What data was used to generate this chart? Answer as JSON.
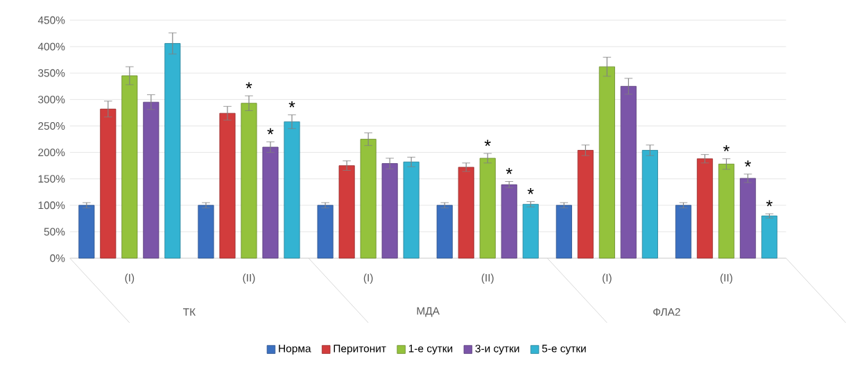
{
  "chart_data": {
    "type": "bar",
    "categories": [
      "(I)",
      "(II)",
      "(I)",
      "(II)",
      "(I)",
      "(II)"
    ],
    "annotations": [
      "ТК",
      "МДА",
      "ФЛА2"
    ],
    "series": [
      {
        "name": "Норма",
        "color": "#3b70c0",
        "values": [
          100,
          100,
          100,
          100,
          100,
          100
        ],
        "errors": [
          5,
          5,
          5,
          5,
          5,
          5
        ]
      },
      {
        "name": "Перитонит",
        "color": "#d23c3c",
        "values": [
          282,
          274,
          175,
          172,
          204,
          188
        ],
        "errors": [
          15,
          13,
          9,
          8,
          10,
          8
        ]
      },
      {
        "name": "1-е сутки",
        "color": "#94c23c",
        "values": [
          345,
          293,
          225,
          189,
          362,
          178
        ],
        "errors": [
          17,
          14,
          12,
          9,
          18,
          10
        ],
        "value_labels": [
          null,
          "*",
          null,
          "*",
          null,
          "*"
        ]
      },
      {
        "name": "3-и сутки",
        "color": "#7b55a8",
        "values": [
          295,
          210,
          179,
          139,
          325,
          151
        ],
        "errors": [
          14,
          10,
          10,
          6,
          15,
          8
        ],
        "value_labels": [
          null,
          "*",
          null,
          "*",
          null,
          "*"
        ]
      },
      {
        "name": "5-е сутки",
        "color": "#33b3d2",
        "values": [
          406,
          258,
          182,
          102,
          204,
          80
        ],
        "errors": [
          20,
          13,
          9,
          5,
          10,
          4
        ],
        "value_labels": [
          null,
          "*",
          null,
          "*",
          null,
          "*"
        ]
      }
    ],
    "ylim": [
      0,
      450
    ],
    "yticks": [
      {
        "value": 0,
        "label": "0%"
      },
      {
        "value": 50,
        "label": "50%"
      },
      {
        "value": 100,
        "label": "100%"
      },
      {
        "value": 150,
        "label": "150%"
      },
      {
        "value": 200,
        "label": "200%"
      },
      {
        "value": 250,
        "label": "250%"
      },
      {
        "value": 300,
        "label": "300%"
      },
      {
        "value": 350,
        "label": "350%"
      },
      {
        "value": 400,
        "label": "400%"
      },
      {
        "value": 450,
        "label": "450%"
      }
    ],
    "grid": "y",
    "legend": "bottom"
  }
}
